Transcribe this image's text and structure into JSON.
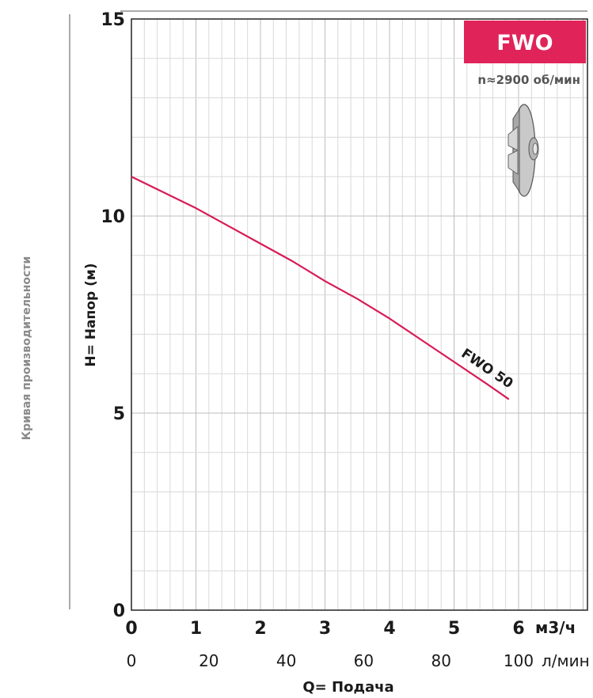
{
  "side_title": "Кривая производительности",
  "badge": {
    "text": "FWO",
    "color": "#e0245a"
  },
  "speed_label": "n≈2900 об/мин",
  "icon": "impeller-icon",
  "chart_data": {
    "type": "line",
    "ylabel": "H= Напор (м)",
    "ylim": [
      0,
      15
    ],
    "yticks": [
      {
        "value": 0,
        "label": "0"
      },
      {
        "value": 5,
        "label": "5"
      },
      {
        "value": 10,
        "label": "10"
      },
      {
        "value": 15,
        "label": "15"
      }
    ],
    "xlim": [
      0,
      6.9
    ],
    "x_primary": {
      "unit": "м3/ч",
      "ticks": [
        {
          "value": 0,
          "label": "0"
        },
        {
          "value": 1,
          "label": "1"
        },
        {
          "value": 2,
          "label": "2"
        },
        {
          "value": 3,
          "label": "3"
        },
        {
          "value": 4,
          "label": "4"
        },
        {
          "value": 5,
          "label": "5"
        },
        {
          "value": 6,
          "label": "6"
        }
      ]
    },
    "x_secondary": {
      "unit": "л/мин",
      "ticks": [
        {
          "value": 0,
          "label": "0"
        },
        {
          "value": 20,
          "label": "20"
        },
        {
          "value": 40,
          "label": "40"
        },
        {
          "value": 60,
          "label": "60"
        },
        {
          "value": 80,
          "label": "80"
        },
        {
          "value": 100,
          "label": "100"
        }
      ]
    },
    "xlabel": "Q= Подача",
    "grid": true,
    "series": [
      {
        "name": "FWO 50",
        "color": "#d81b55",
        "x": [
          0,
          0.5,
          1,
          1.5,
          2,
          2.5,
          3,
          3.5,
          4,
          4.5,
          5,
          5.5,
          5.85
        ],
        "y": [
          11.0,
          10.6,
          10.2,
          9.75,
          9.3,
          8.85,
          8.35,
          7.9,
          7.4,
          6.85,
          6.3,
          5.75,
          5.35
        ]
      }
    ]
  }
}
